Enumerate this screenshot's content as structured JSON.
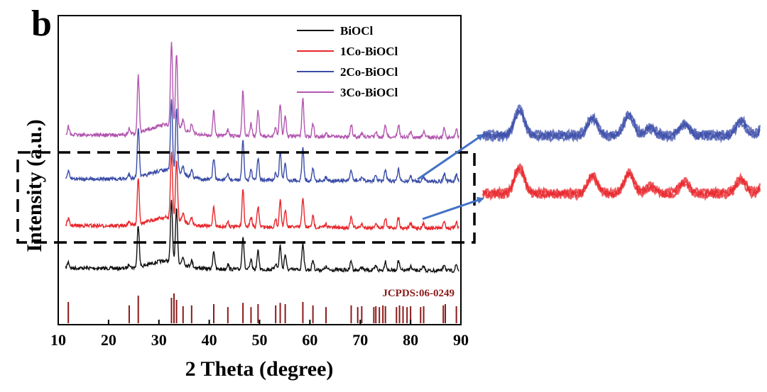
{
  "panel_label": "b",
  "chart_data": {
    "type": "line",
    "xlabel": "2 Theta (degree)",
    "ylabel": "Intensity (a.u.)",
    "xlim": [
      10,
      90
    ],
    "xticks": [
      "10",
      "20",
      "30",
      "40",
      "50",
      "60",
      "70",
      "80",
      "90"
    ],
    "yticks": false,
    "grid": false,
    "legend_position": "top-right",
    "series": [
      {
        "name": "BiOCl",
        "color": "#111111",
        "offset": 0
      },
      {
        "name": "1Co-BiOCl",
        "color": "#e8262b",
        "offset": 1
      },
      {
        "name": "2Co-BiOCl",
        "color": "#3a4ca8",
        "offset": 2
      },
      {
        "name": "3Co-BiOCl",
        "color": "#b356b0",
        "offset": 3
      }
    ],
    "peaks": [
      {
        "x": 12.0,
        "h": 0.1
      },
      {
        "x": 24.1,
        "h": 0.07
      },
      {
        "x": 25.9,
        "h": 0.7
      },
      {
        "x": 32.5,
        "h": 1.0
      },
      {
        "x": 33.5,
        "h": 0.88
      },
      {
        "x": 34.8,
        "h": 0.12
      },
      {
        "x": 36.5,
        "h": 0.1
      },
      {
        "x": 40.9,
        "h": 0.3
      },
      {
        "x": 43.7,
        "h": 0.08
      },
      {
        "x": 46.7,
        "h": 0.55
      },
      {
        "x": 48.3,
        "h": 0.15
      },
      {
        "x": 49.7,
        "h": 0.3
      },
      {
        "x": 53.2,
        "h": 0.1
      },
      {
        "x": 54.1,
        "h": 0.4
      },
      {
        "x": 55.1,
        "h": 0.25
      },
      {
        "x": 58.6,
        "h": 0.45
      },
      {
        "x": 60.6,
        "h": 0.16
      },
      {
        "x": 63.2,
        "h": 0.05
      },
      {
        "x": 68.2,
        "h": 0.15
      },
      {
        "x": 70.3,
        "h": 0.05
      },
      {
        "x": 73.1,
        "h": 0.07
      },
      {
        "x": 75.0,
        "h": 0.15
      },
      {
        "x": 77.6,
        "h": 0.16
      },
      {
        "x": 80.0,
        "h": 0.07
      },
      {
        "x": 82.6,
        "h": 0.07
      },
      {
        "x": 86.7,
        "h": 0.11
      },
      {
        "x": 89.1,
        "h": 0.1
      }
    ],
    "reference": {
      "label": "JCPDS:06-0249",
      "color": "#8b1a1a",
      "lines": [
        {
          "x": 12.0,
          "h": 0.5
        },
        {
          "x": 24.1,
          "h": 0.42
        },
        {
          "x": 25.9,
          "h": 0.65
        },
        {
          "x": 32.5,
          "h": 0.6
        },
        {
          "x": 33.0,
          "h": 0.7
        },
        {
          "x": 33.5,
          "h": 0.55
        },
        {
          "x": 34.8,
          "h": 0.4
        },
        {
          "x": 36.5,
          "h": 0.42
        },
        {
          "x": 40.9,
          "h": 0.45
        },
        {
          "x": 43.7,
          "h": 0.38
        },
        {
          "x": 46.7,
          "h": 0.48
        },
        {
          "x": 48.3,
          "h": 0.38
        },
        {
          "x": 49.7,
          "h": 0.45
        },
        {
          "x": 53.2,
          "h": 0.42
        },
        {
          "x": 54.1,
          "h": 0.48
        },
        {
          "x": 55.1,
          "h": 0.45
        },
        {
          "x": 58.6,
          "h": 0.5
        },
        {
          "x": 60.6,
          "h": 0.42
        },
        {
          "x": 63.2,
          "h": 0.38
        },
        {
          "x": 68.2,
          "h": 0.42
        },
        {
          "x": 69.5,
          "h": 0.38
        },
        {
          "x": 70.3,
          "h": 0.4
        },
        {
          "x": 72.7,
          "h": 0.38
        },
        {
          "x": 73.1,
          "h": 0.4
        },
        {
          "x": 73.8,
          "h": 0.38
        },
        {
          "x": 74.5,
          "h": 0.42
        },
        {
          "x": 75.0,
          "h": 0.4
        },
        {
          "x": 77.2,
          "h": 0.38
        },
        {
          "x": 77.8,
          "h": 0.42
        },
        {
          "x": 78.5,
          "h": 0.4
        },
        {
          "x": 79.3,
          "h": 0.38
        },
        {
          "x": 80.0,
          "h": 0.4
        },
        {
          "x": 82.0,
          "h": 0.38
        },
        {
          "x": 82.6,
          "h": 0.4
        },
        {
          "x": 86.5,
          "h": 0.42
        },
        {
          "x": 86.9,
          "h": 0.45
        },
        {
          "x": 89.1,
          "h": 0.4
        }
      ]
    },
    "zoom_inset": {
      "highlight": "dashed box around the 1Co-BiOCl and 2Co-BiOCl curves",
      "arrows": "two blue arrows pointing to enlarged views",
      "enlarged_series": [
        "2Co-BiOCl",
        "1Co-BiOCl"
      ]
    }
  }
}
